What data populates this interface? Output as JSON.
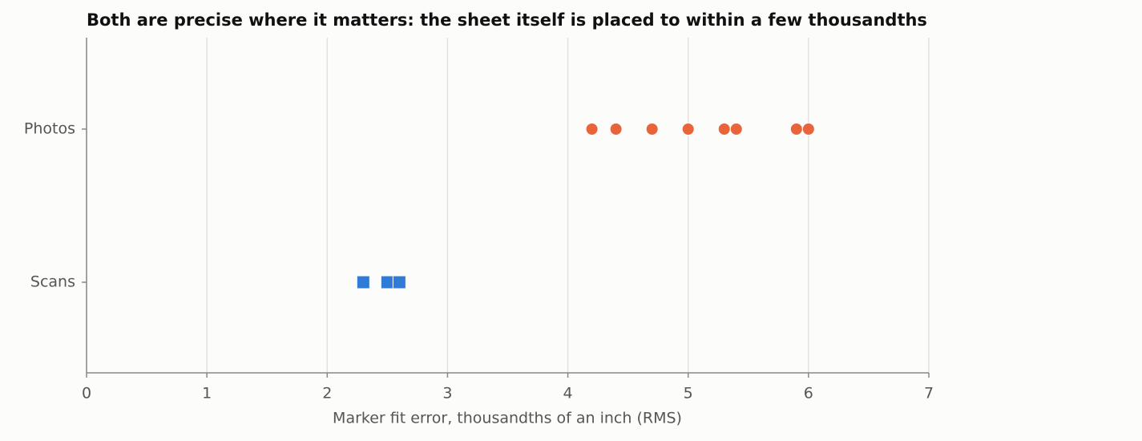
{
  "chart_data": {
    "type": "strip",
    "title": "Both are precise where it matters: the sheet itself is placed to within a few thousandths",
    "xlabel": "Marker fit error, thousandths of an inch (RMS)",
    "categories": [
      "Scans",
      "Photos"
    ],
    "values": [
      [
        2.3,
        2.5,
        2.6
      ],
      [
        4.2,
        4.4,
        4.7,
        5.0,
        5.3,
        5.4,
        5.9,
        6.0
      ]
    ],
    "colors": [
      "#2f7bd6",
      "#e8643a"
    ],
    "markers": [
      "square",
      "circle"
    ],
    "xlim": [
      0,
      7
    ],
    "xticks": [
      0,
      1,
      2,
      3,
      4,
      5,
      6,
      7
    ],
    "grid": true
  }
}
